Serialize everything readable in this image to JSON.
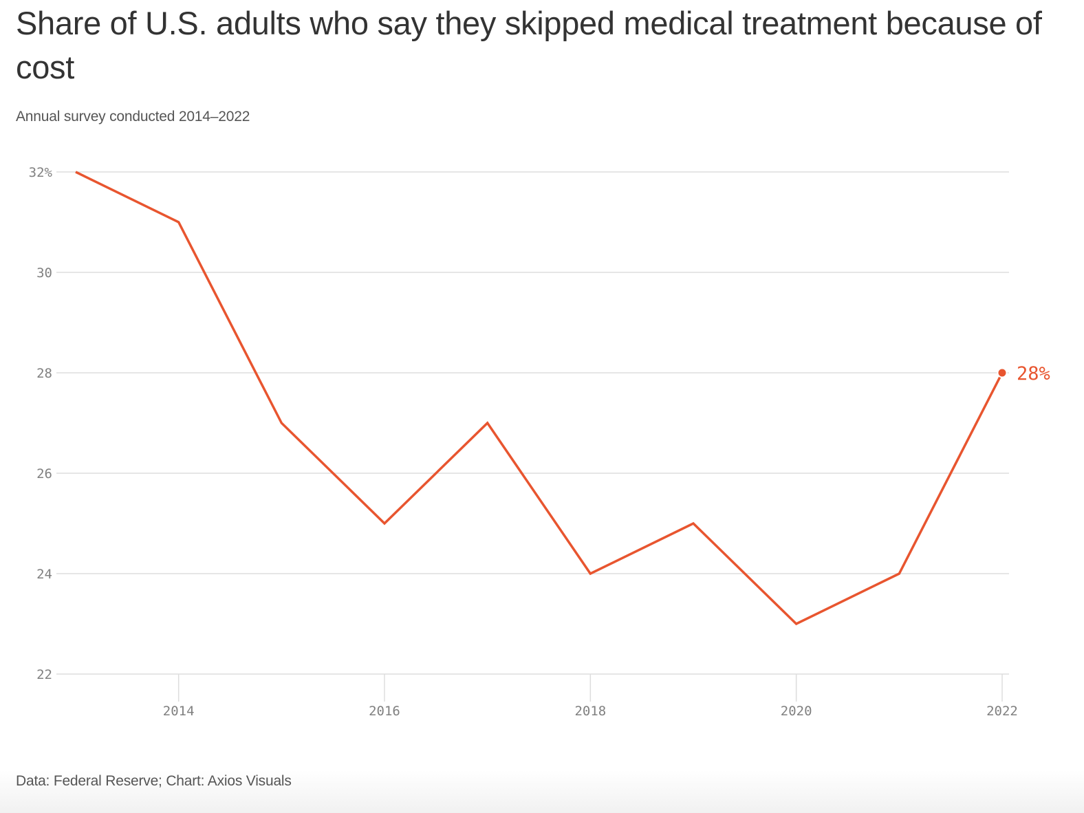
{
  "title": "Share of U.S. adults who say they skipped medical treatment because of cost",
  "subtitle": "Annual survey conducted 2014–2022",
  "source": "Data: Federal Reserve; Chart: Axios Visuals",
  "colors": {
    "line": "#E8552F",
    "grid": "#DDDDDD",
    "tick_text": "#808080",
    "title_text": "#333333",
    "subtitle_text": "#555555"
  },
  "chart_data": {
    "type": "line",
    "title": "Share of U.S. adults who say they skipped medical treatment because of cost",
    "subtitle": "Annual survey conducted 2014–2022",
    "xlabel": "",
    "ylabel": "",
    "x": [
      2013,
      2014,
      2015,
      2016,
      2017,
      2018,
      2019,
      2020,
      2021,
      2022
    ],
    "series": [
      {
        "name": "Skipped medical treatment because of cost (%)",
        "values": [
          32,
          31,
          27,
          25,
          27,
          24,
          25,
          23,
          24,
          28
        ]
      }
    ],
    "xlim": [
      2013,
      2022
    ],
    "ylim": [
      22,
      32
    ],
    "yticks": [
      32,
      30,
      28,
      26,
      24,
      22
    ],
    "ytick_labels": [
      "32%",
      "30",
      "28",
      "26",
      "24",
      "22"
    ],
    "xticks": [
      2014,
      2016,
      2018,
      2020,
      2022
    ],
    "xtick_labels": [
      "2014",
      "2016",
      "2018",
      "2020",
      "2022"
    ],
    "grid": "horizontal",
    "legend": "none",
    "annotations": [
      {
        "x": 2022,
        "y": 28,
        "text": "28%",
        "marker": "dot"
      }
    ]
  }
}
